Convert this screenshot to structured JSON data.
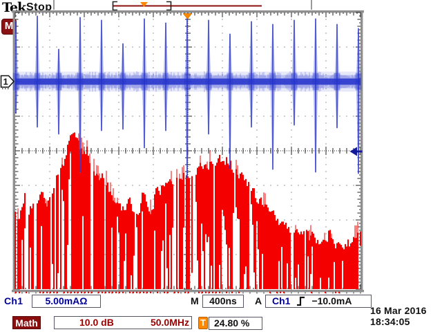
{
  "header": {
    "logo": "Tek",
    "acq_state": "Stop"
  },
  "markers": {
    "math_badge": "M",
    "channel_badge": "1",
    "trigger_badge": "T"
  },
  "readouts": {
    "ch1_label": "Ch1",
    "ch1_scale": "5.00mAΩ",
    "timebase_label": "M",
    "timebase": "400ns",
    "trigger_label": "A",
    "trigger_source": "Ch1",
    "trigger_level": "−10.0mA",
    "math_label": "Math",
    "math_scale": "10.0 dB",
    "math_freq": "50.0MHz",
    "holdoff": "24.80 %",
    "date": "16 Mar 2016",
    "time": "18:34:05"
  },
  "colors": {
    "ch1_blue": "#2633cc",
    "ch1_blue_halo": "#7b85e0",
    "math_red": "#f40000",
    "maroon": "#8b0e0e",
    "orange": "#ff8800",
    "navy_text": "#000099",
    "dark_red_text": "#990000",
    "border_gray": "#8f8f8f",
    "tick_black": "#222222"
  },
  "chart_data": {
    "type": "line",
    "title": "Tektronix oscilloscope display: Ch1 time-domain pulses (blue) and Math FFT spectrum (red)",
    "grid": {
      "x_divisions": 10,
      "y_divisions": 8,
      "style": "dotted"
    },
    "ch1_per_div": "5.00mAΩ",
    "timebase_per_div": "400ns",
    "math_db_per_div": "10.0 dB",
    "math_hz_per_div": "50.0MHz",
    "trigger_level": "−10.0mA",
    "trigger_holdoff_pct": 24.8,
    "trigger_position_div": 4.99,
    "trigger_level_div": 4.02,
    "series": [
      {
        "name": "Ch1",
        "kind": "time-domain",
        "color": "#2633cc",
        "baseline_div": 2.0,
        "noise_halfwidth_div": 0.13,
        "pulses": [
          {
            "x": 0.02,
            "top": 0.24,
            "bottom": 2.94
          },
          {
            "x": 0.64,
            "top": 0.08,
            "bottom": 3.34
          },
          {
            "x": 1.26,
            "top": 1.04,
            "bottom": 3.54
          },
          {
            "x": 1.88,
            "top": 0.12,
            "bottom": 4.64
          },
          {
            "x": 2.5,
            "top": 0.2,
            "bottom": 3.44
          },
          {
            "x": 3.12,
            "top": 0.88,
            "bottom": 3.4
          },
          {
            "x": 3.74,
            "top": 0.16,
            "bottom": 3.94
          },
          {
            "x": 4.36,
            "top": 0.28,
            "bottom": 3.44
          },
          {
            "x": 4.98,
            "top": 0.08,
            "bottom": 4.8
          },
          {
            "x": 5.6,
            "top": 0.2,
            "bottom": 3.54
          },
          {
            "x": 6.22,
            "top": 0.6,
            "bottom": 4.54
          },
          {
            "x": 6.84,
            "top": 0.24,
            "bottom": 3.34
          },
          {
            "x": 7.46,
            "top": 0.32,
            "bottom": 4.56
          },
          {
            "x": 8.08,
            "top": 0.2,
            "bottom": 3.28
          },
          {
            "x": 8.7,
            "top": 0.16,
            "bottom": 4.64
          },
          {
            "x": 9.32,
            "top": 0.32,
            "bottom": 3.36
          },
          {
            "x": 9.94,
            "top": 0.44,
            "bottom": 4.68
          }
        ]
      },
      {
        "name": "Math FFT",
        "kind": "spectrum",
        "color": "#f40000",
        "x_start_div": 0,
        "x_step_div": 0.1,
        "floor_div": 8.0,
        "top_envelope_div": [
          5.64,
          5.94,
          5.64,
          5.24,
          5.84,
          5.54,
          5.64,
          5.34,
          5.3,
          5.64,
          5.44,
          5.04,
          4.84,
          4.64,
          4.44,
          3.94,
          3.64,
          3.54,
          3.74,
          3.94,
          4.14,
          3.94,
          4.4,
          4.6,
          4.8,
          4.68,
          4.88,
          5.08,
          5.24,
          5.54,
          5.4,
          5.64,
          5.84,
          5.34,
          5.74,
          5.94,
          5.68,
          5.0,
          5.54,
          5.84,
          5.6,
          4.88,
          5.2,
          5.0,
          4.8,
          4.76,
          4.88,
          4.68,
          4.76,
          4.64,
          4.74,
          4.68,
          4.6,
          4.54,
          4.44,
          4.38,
          4.44,
          4.3,
          4.36,
          4.24,
          4.2,
          4.3,
          4.38,
          4.48,
          4.58,
          4.68,
          4.78,
          4.96,
          5.06,
          5.18,
          5.36,
          5.46,
          5.56,
          5.66,
          5.76,
          5.86,
          6.0,
          6.06,
          6.16,
          6.24,
          6.26,
          6.34,
          6.3,
          6.36,
          6.4,
          6.44,
          6.48,
          6.54,
          6.6,
          6.64,
          6.64,
          6.28,
          6.68,
          6.74,
          6.66,
          6.74,
          6.68,
          6.64,
          6.6,
          6.46,
          6.32
        ]
      }
    ]
  }
}
